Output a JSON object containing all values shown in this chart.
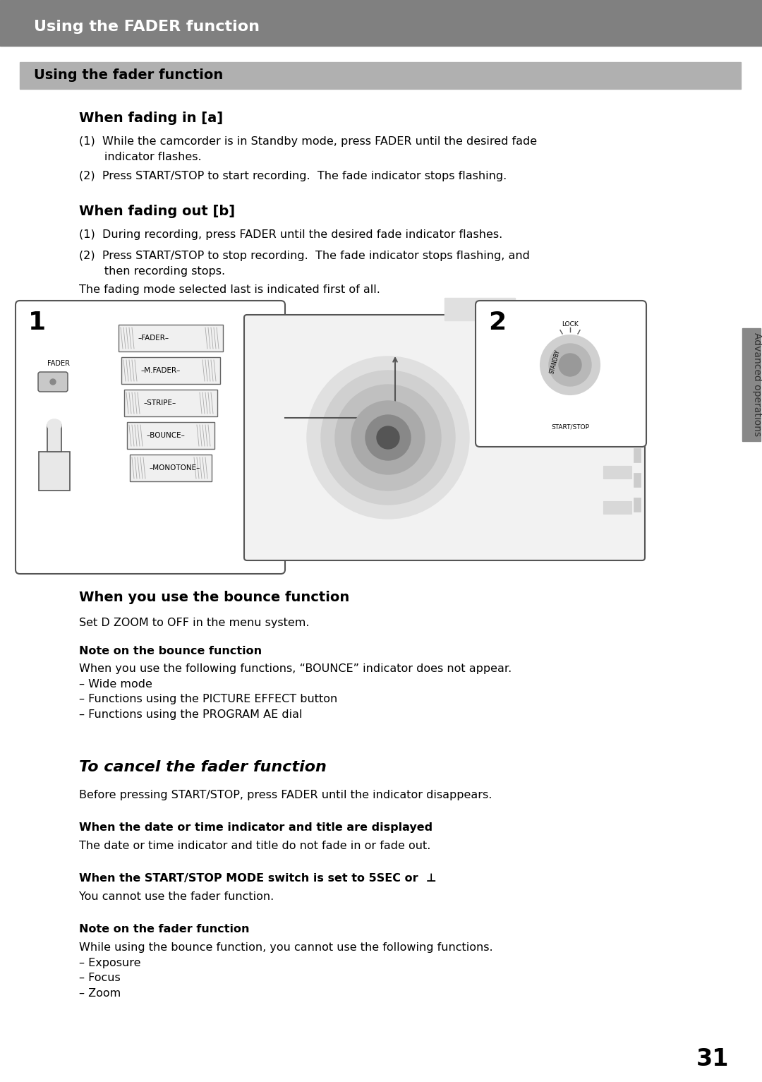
{
  "page_bg": "#ffffff",
  "top_bar_color": "#808080",
  "top_bar_text": "Using the FADER function",
  "top_bar_text_color": "#ffffff",
  "section_bar_color": "#b0b0b0",
  "section_bar_text": "Using the fader function",
  "section_bar_text_color": "#000000",
  "heading1": "When fading in [a]",
  "heading2": "When fading out [b]",
  "heading3": "When you use the bounce function",
  "heading4": "To cancel the fader function",
  "page_number": "31",
  "side_bar_color": "#888888",
  "side_label_text": "Advanced operations"
}
